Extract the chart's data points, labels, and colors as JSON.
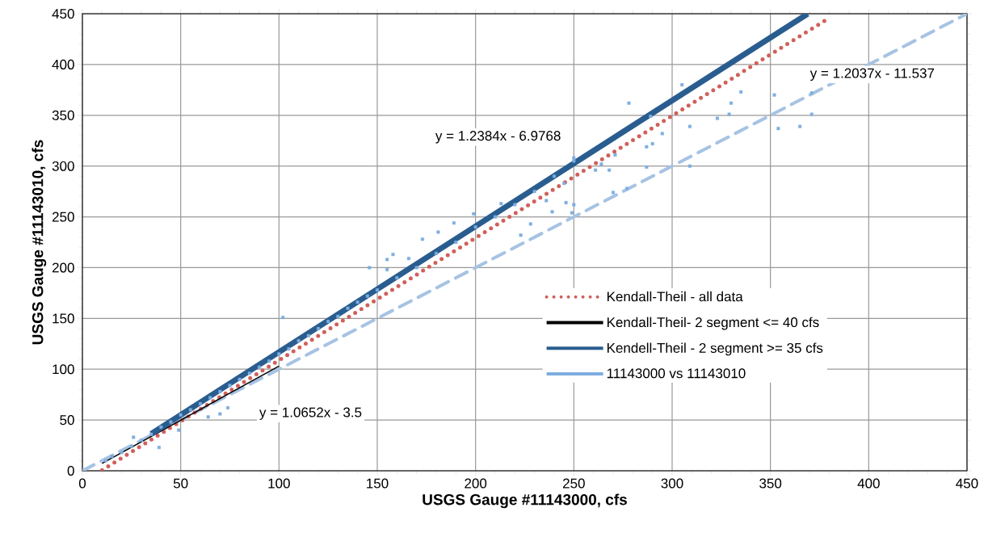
{
  "chart_data": {
    "type": "scatter",
    "xlabel": "USGS Gauge #11143000, cfs",
    "ylabel": "USGS Gauge #11143010, cfs",
    "xlim": [
      0,
      450
    ],
    "ylim": [
      0,
      450
    ],
    "xticks": [
      0,
      50,
      100,
      150,
      200,
      250,
      300,
      350,
      400,
      450
    ],
    "yticks": [
      0,
      50,
      100,
      150,
      200,
      250,
      300,
      350,
      400,
      450
    ],
    "grid": true,
    "legend": "bottom right",
    "series": [
      {
        "name": "Kendall-Theil - all data",
        "type": "line",
        "line_style": "dotted",
        "color": "#d0605a",
        "x": [
          10,
          380
        ],
        "values": [
          0.5,
          445.9
        ]
      },
      {
        "name": "Kendall-Theil- 2 segment <= 40 cfs",
        "type": "line",
        "line_style": "solid",
        "color": "#000000",
        "x": [
          10,
          100
        ],
        "values": [
          7.2,
          103
        ]
      },
      {
        "name": "Kendell-Theil - 2 segment >= 35 cfs",
        "type": "line",
        "line_style": "solid",
        "color": "#2a5d8f",
        "x": [
          35,
          369
        ],
        "values": [
          36.4,
          450
        ]
      },
      {
        "name": "11143000 vs 11143010",
        "color": "#7eaee0",
        "marker": "square",
        "x": [
          12,
          15,
          20,
          25,
          26,
          30,
          35,
          39,
          40,
          45,
          49,
          50,
          55,
          60,
          64,
          65,
          70,
          70,
          74,
          75,
          80,
          85,
          90,
          95,
          100,
          102,
          105,
          110,
          115,
          120,
          125,
          130,
          135,
          140,
          145,
          146,
          150,
          155,
          155,
          158,
          160,
          166,
          170,
          173,
          180,
          181,
          189,
          190,
          199,
          200,
          210,
          213,
          220,
          223,
          228,
          230,
          236,
          239,
          240,
          245,
          246,
          249,
          250,
          250,
          250,
          261,
          264,
          268,
          270,
          271,
          277,
          278,
          287,
          287,
          289,
          290,
          295,
          305,
          309,
          309,
          323,
          329,
          330,
          335,
          352,
          354,
          365,
          371,
          371
        ],
        "values": [
          10,
          14,
          18,
          24,
          33,
          30,
          36,
          23,
          43,
          48,
          40,
          55,
          60,
          66,
          53,
          72,
          78,
          56,
          62,
          84,
          90,
          96,
          102,
          108,
          115,
          151,
          120,
          128,
          133,
          140,
          147,
          152,
          160,
          166,
          172,
          200,
          178,
          208,
          198,
          213,
          190,
          209,
          200,
          228,
          214,
          235,
          244,
          225,
          253,
          240,
          250,
          263,
          262,
          232,
          243,
          275,
          266,
          255,
          290,
          283,
          264,
          254,
          308,
          262,
          305,
          296,
          302,
          296,
          274,
          311,
          278,
          362,
          319,
          299,
          349,
          322,
          332,
          380,
          339,
          300,
          347,
          351,
          362,
          373,
          370,
          337,
          339,
          372,
          351
        ]
      },
      {
        "type": "line",
        "line_style": "dashed",
        "color": "#a6c3e3",
        "x": [
          0,
          450
        ],
        "values": [
          0,
          450
        ]
      }
    ],
    "annotations": [
      "y = 1.2384x - 6.9768",
      "y = 1.2037x - 11.537",
      "y = 1.0652x - 3.5"
    ]
  }
}
